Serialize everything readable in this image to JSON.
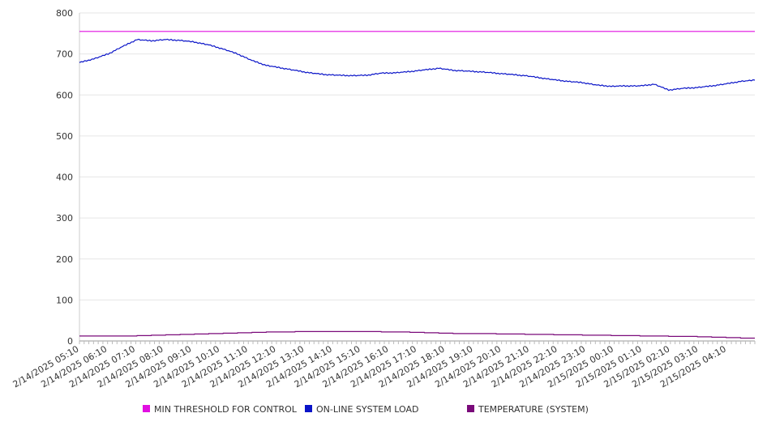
{
  "chart_data": {
    "type": "line",
    "title": "",
    "xlabel": "",
    "ylabel": "",
    "ylim": [
      0,
      800
    ],
    "yticks": [
      "0",
      "100",
      "200",
      "300",
      "400",
      "500",
      "600",
      "700",
      "800"
    ],
    "grid": "horizontal",
    "legend_position": "bottom",
    "x_tick_labels": [
      "2/14/2025 05:10",
      "2/14/2025 06:10",
      "2/14/2025 07:10",
      "2/14/2025 08:10",
      "2/14/2025 09:10",
      "2/14/2025 10:10",
      "2/14/2025 11:10",
      "2/14/2025 12:10",
      "2/14/2025 13:10",
      "2/14/2025 14:10",
      "2/14/2025 15:10",
      "2/14/2025 16:10",
      "2/14/2025 17:10",
      "2/14/2025 18:10",
      "2/14/2025 19:10",
      "2/14/2025 20:10",
      "2/14/2025 21:10",
      "2/14/2025 22:10",
      "2/14/2025 23:10",
      "2/15/2025 00:10",
      "2/15/2025 01:10",
      "2/15/2025 02:10",
      "2/15/2025 03:10",
      "2/15/2025 04:10"
    ],
    "x": [
      "2/14/2025 05:10",
      "2/14/2025 05:40",
      "2/14/2025 06:10",
      "2/14/2025 06:40",
      "2/14/2025 07:10",
      "2/14/2025 07:40",
      "2/14/2025 08:10",
      "2/14/2025 08:40",
      "2/14/2025 09:10",
      "2/14/2025 09:40",
      "2/14/2025 10:10",
      "2/14/2025 10:40",
      "2/14/2025 11:10",
      "2/14/2025 11:40",
      "2/14/2025 12:10",
      "2/14/2025 12:40",
      "2/14/2025 13:10",
      "2/14/2025 13:40",
      "2/14/2025 14:10",
      "2/14/2025 14:40",
      "2/14/2025 15:10",
      "2/14/2025 15:40",
      "2/14/2025 16:10",
      "2/14/2025 16:40",
      "2/14/2025 17:10",
      "2/14/2025 17:40",
      "2/14/2025 18:10",
      "2/14/2025 18:40",
      "2/14/2025 19:10",
      "2/14/2025 19:40",
      "2/14/2025 20:10",
      "2/14/2025 20:40",
      "2/14/2025 21:10",
      "2/14/2025 21:40",
      "2/14/2025 22:10",
      "2/14/2025 22:40",
      "2/14/2025 23:10",
      "2/14/2025 23:40",
      "2/15/2025 00:10",
      "2/15/2025 00:40",
      "2/15/2025 01:10",
      "2/15/2025 01:40",
      "2/15/2025 02:10",
      "2/15/2025 02:40",
      "2/15/2025 03:10",
      "2/15/2025 03:40",
      "2/15/2025 04:10",
      "2/15/2025 04:40"
    ],
    "series": [
      {
        "name": "MIN THRESHOLD FOR CONTROL",
        "color": "#e10fe1",
        "values": [
          755,
          755,
          755,
          755,
          755,
          755,
          755,
          755,
          755,
          755,
          755,
          755,
          755,
          755,
          755,
          755,
          755,
          755,
          755,
          755,
          755,
          755,
          755,
          755,
          755,
          755,
          755,
          755,
          755,
          755,
          755,
          755,
          755,
          755,
          755,
          755,
          755,
          755,
          755,
          755,
          755,
          755,
          755,
          755,
          755,
          755,
          755,
          755
        ]
      },
      {
        "name": "ON-LINE SYSTEM LOAD",
        "color": "#0a14c8",
        "values": [
          679,
          688,
          700,
          718,
          735,
          732,
          735,
          733,
          729,
          722,
          712,
          700,
          684,
          672,
          666,
          660,
          654,
          650,
          648,
          647,
          648,
          653,
          654,
          657,
          661,
          665,
          660,
          658,
          656,
          653,
          650,
          647,
          642,
          637,
          633,
          630,
          624,
          621,
          622,
          622,
          626,
          612,
          616,
          618,
          622,
          627,
          633,
          636
        ]
      },
      {
        "name": "TEMPERATURE (SYSTEM)",
        "color": "#7a0a7a",
        "values": [
          12,
          12,
          12,
          12,
          13,
          14,
          15,
          16,
          17,
          18,
          19,
          20,
          21,
          22,
          22,
          23,
          23,
          23,
          23,
          23,
          23,
          22,
          22,
          21,
          20,
          19,
          18,
          18,
          18,
          17,
          17,
          16,
          16,
          15,
          15,
          14,
          14,
          13,
          13,
          12,
          12,
          11,
          11,
          10,
          9,
          8,
          7,
          7
        ]
      }
    ]
  }
}
